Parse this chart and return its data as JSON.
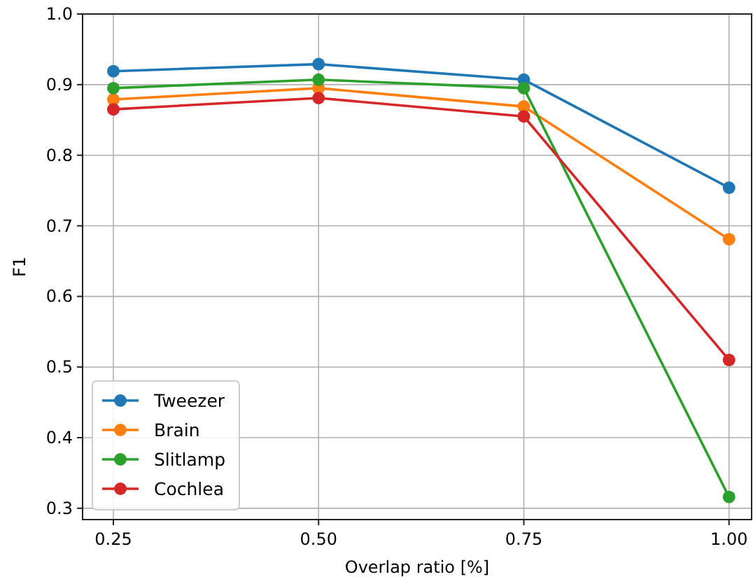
{
  "chart_data": {
    "type": "line",
    "xlabel": "Overlap ratio [%]",
    "ylabel": "F1",
    "x": [
      0.25,
      0.5,
      0.75,
      1.0
    ],
    "series": [
      {
        "name": "Tweezer",
        "color": "#1f77b4",
        "values": [
          0.919,
          0.929,
          0.907,
          0.754
        ]
      },
      {
        "name": "Brain",
        "color": "#ff7f0e",
        "values": [
          0.879,
          0.895,
          0.869,
          0.681
        ]
      },
      {
        "name": "Slitlamp",
        "color": "#2ca02c",
        "values": [
          0.895,
          0.907,
          0.895,
          0.316
        ]
      },
      {
        "name": "Cochlea",
        "color": "#d62728",
        "values": [
          0.865,
          0.881,
          0.855,
          0.51
        ]
      }
    ],
    "xlim": [
      0.2125,
      1.0275
    ],
    "xticks": [
      {
        "value": 0.25,
        "label": "0.25"
      },
      {
        "value": 0.5,
        "label": "0.50"
      },
      {
        "value": 0.75,
        "label": "0.75"
      },
      {
        "value": 1.0,
        "label": "1.00"
      }
    ],
    "ylim": [
      0.284,
      1.0
    ],
    "yticks": [
      0.3,
      0.4,
      0.5,
      0.6,
      0.7,
      0.8,
      0.9,
      {
        "value": 1.0,
        "label": "1.0"
      }
    ],
    "grid": true,
    "legend": "bottom left",
    "marker": "circle",
    "line_style": "solid"
  }
}
